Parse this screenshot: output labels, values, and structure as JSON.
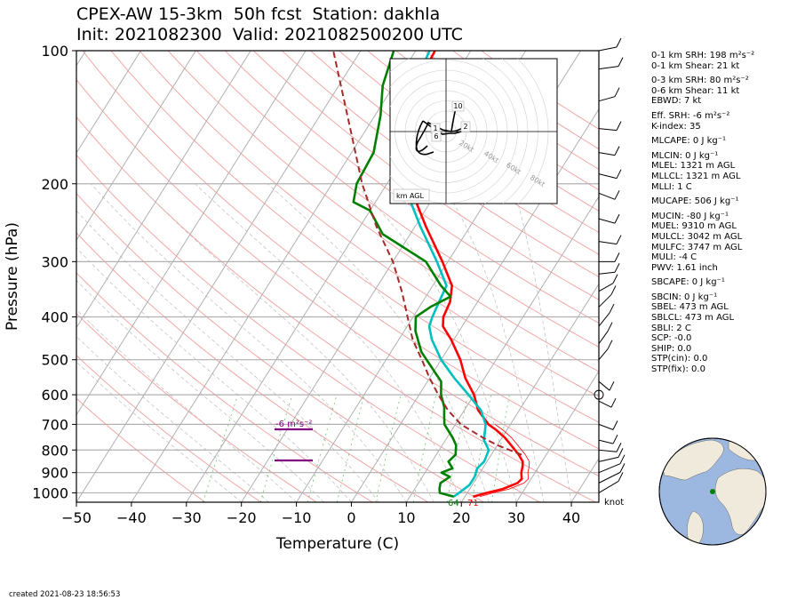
{
  "title": {
    "line1": "CPEX-AW 15-3km  50h fcst  Station: dakhla",
    "line2": "Init: 2021082300  Valid: 2021082500200 UTC"
  },
  "chart_data": {
    "type": "skew-t",
    "xlabel": "Temperature (C)",
    "ylabel": "Pressure (hPa)",
    "xlim": [
      -50,
      45
    ],
    "ylim": [
      1050,
      100
    ],
    "x_ticks": [
      "−50",
      "−40",
      "−30",
      "−20",
      "−10",
      "0",
      "10",
      "20",
      "30",
      "40"
    ],
    "x_tick_values": [
      -50,
      -40,
      -30,
      -20,
      -10,
      0,
      10,
      20,
      30,
      40
    ],
    "y_ticks": [
      "100",
      "200",
      "300",
      "400",
      "500",
      "600",
      "700",
      "800",
      "900",
      "1000"
    ],
    "y_tick_values": [
      100,
      200,
      300,
      400,
      500,
      600,
      700,
      800,
      900,
      1000
    ],
    "series": [
      {
        "color": "#ff0000",
        "points": [
          [
            1020,
            21.5
          ],
          [
            1000,
            23.5
          ],
          [
            980,
            26
          ],
          [
            950,
            28
          ],
          [
            930,
            28.3
          ],
          [
            900,
            27.5
          ],
          [
            870,
            27
          ],
          [
            850,
            26.5
          ],
          [
            820,
            25
          ],
          [
            780,
            22.5
          ],
          [
            750,
            20.5
          ],
          [
            720,
            18
          ],
          [
            700,
            16
          ],
          [
            650,
            12.5
          ],
          [
            600,
            10
          ],
          [
            550,
            6.5
          ],
          [
            500,
            3.5
          ],
          [
            450,
            -0.5
          ],
          [
            420,
            -3.5
          ],
          [
            400,
            -4.5
          ],
          [
            370,
            -5
          ],
          [
            340,
            -6.5
          ],
          [
            300,
            -11
          ],
          [
            250,
            -18
          ],
          [
            200,
            -26
          ],
          [
            170,
            -31
          ],
          [
            150,
            -34.5
          ],
          [
            130,
            -36
          ],
          [
            115,
            -36
          ],
          [
            100,
            -36.5
          ]
        ]
      },
      {
        "color": "#00bfbf",
        "points": [
          [
            1020,
            18
          ],
          [
            1000,
            18.5
          ],
          [
            960,
            19.5
          ],
          [
            920,
            19.5
          ],
          [
            880,
            19
          ],
          [
            850,
            19.5
          ],
          [
            800,
            19
          ],
          [
            760,
            17
          ],
          [
            700,
            15.5
          ],
          [
            650,
            13
          ],
          [
            600,
            9
          ],
          [
            550,
            4.5
          ],
          [
            500,
            0
          ],
          [
            450,
            -4
          ],
          [
            420,
            -6
          ],
          [
            400,
            -6.5
          ],
          [
            370,
            -7
          ],
          [
            340,
            -7.5
          ],
          [
            300,
            -12
          ],
          [
            250,
            -19
          ],
          [
            200,
            -27
          ],
          [
            170,
            -32
          ],
          [
            150,
            -35
          ],
          [
            130,
            -36.5
          ],
          [
            115,
            -36.5
          ],
          [
            100,
            -37.5
          ]
        ]
      },
      {
        "color": "#008000",
        "points": [
          [
            1020,
            18
          ],
          [
            1000,
            15
          ],
          [
            980,
            14.5
          ],
          [
            950,
            14
          ],
          [
            920,
            15
          ],
          [
            900,
            13
          ],
          [
            880,
            14.5
          ],
          [
            850,
            13
          ],
          [
            820,
            13.5
          ],
          [
            780,
            12.5
          ],
          [
            750,
            11
          ],
          [
            700,
            8
          ],
          [
            670,
            7
          ],
          [
            640,
            6
          ],
          [
            600,
            4
          ],
          [
            560,
            2.5
          ],
          [
            530,
            0
          ],
          [
            480,
            -4.5
          ],
          [
            430,
            -8
          ],
          [
            400,
            -9.5
          ],
          [
            380,
            -8
          ],
          [
            360,
            -5.5
          ],
          [
            340,
            -8.5
          ],
          [
            300,
            -14
          ],
          [
            260,
            -25
          ],
          [
            230,
            -30
          ],
          [
            220,
            -34
          ],
          [
            200,
            -35.5
          ],
          [
            170,
            -36
          ],
          [
            140,
            -39
          ],
          [
            120,
            -42
          ],
          [
            100,
            -44
          ]
        ]
      },
      {
        "color": "#a52a2a",
        "dashed": true,
        "points": [
          [
            820,
            25.5
          ],
          [
            780,
            20
          ],
          [
            750,
            16.5
          ],
          [
            700,
            11
          ],
          [
            650,
            7
          ],
          [
            600,
            3.5
          ],
          [
            550,
            0
          ],
          [
            500,
            -3.5
          ],
          [
            450,
            -7.5
          ],
          [
            400,
            -11
          ],
          [
            350,
            -15
          ],
          [
            300,
            -20
          ],
          [
            250,
            -27
          ],
          [
            200,
            -34.5
          ],
          [
            150,
            -43
          ],
          [
            100,
            -55
          ]
        ]
      }
    ],
    "annotations": [
      "-6 m²s⁻²",
      "64",
      "71",
      "knot"
    ],
    "hodograph": {
      "labels": [
        "20kt",
        "40kt",
        "60kt",
        "80kt"
      ],
      "height_labels": [
        "10",
        "2",
        "1",
        "6"
      ],
      "corner_label": "km AGL"
    },
    "wind_barbs": true
  },
  "stats": [
    "0-1 km SRH: 198 m²s⁻²",
    "0-1 km Shear: 21 kt",
    "0-3 km SRH: 80 m²s⁻²",
    "0-6 km Shear: 11 kt",
    "EBWD: 7 kt",
    "Eff. SRH: -6 m²s⁻²",
    "K-index: 35",
    "MLCAPE: 0 J kg⁻¹",
    "MLCIN: 0 J kg⁻¹",
    "MLEL: 1321 m AGL",
    "MLLCL: 1321 m AGL",
    "MLLI: 1 C",
    "MUCAPE: 506 J kg⁻¹",
    "MUCIN: -80 J kg⁻¹",
    "MUEL: 9310 m AGL",
    "MULCL: 3042 m AGL",
    "MULFC: 3747 m AGL",
    "MULI: -4 C",
    "PWV: 1.61 inch",
    "SBCAPE: 0 J kg⁻¹",
    "SBCIN: 0 J kg⁻¹",
    "SBEL: 473 m AGL",
    "SBLCL: 473 m AGL",
    "SBLI: 2 C",
    "SCP: -0.0",
    "SHIP: 0.0",
    "STP(cin): 0.0",
    "STP(fix): 0.0"
  ],
  "footer": {
    "created": "created 2021-08-23 18:56:53"
  }
}
